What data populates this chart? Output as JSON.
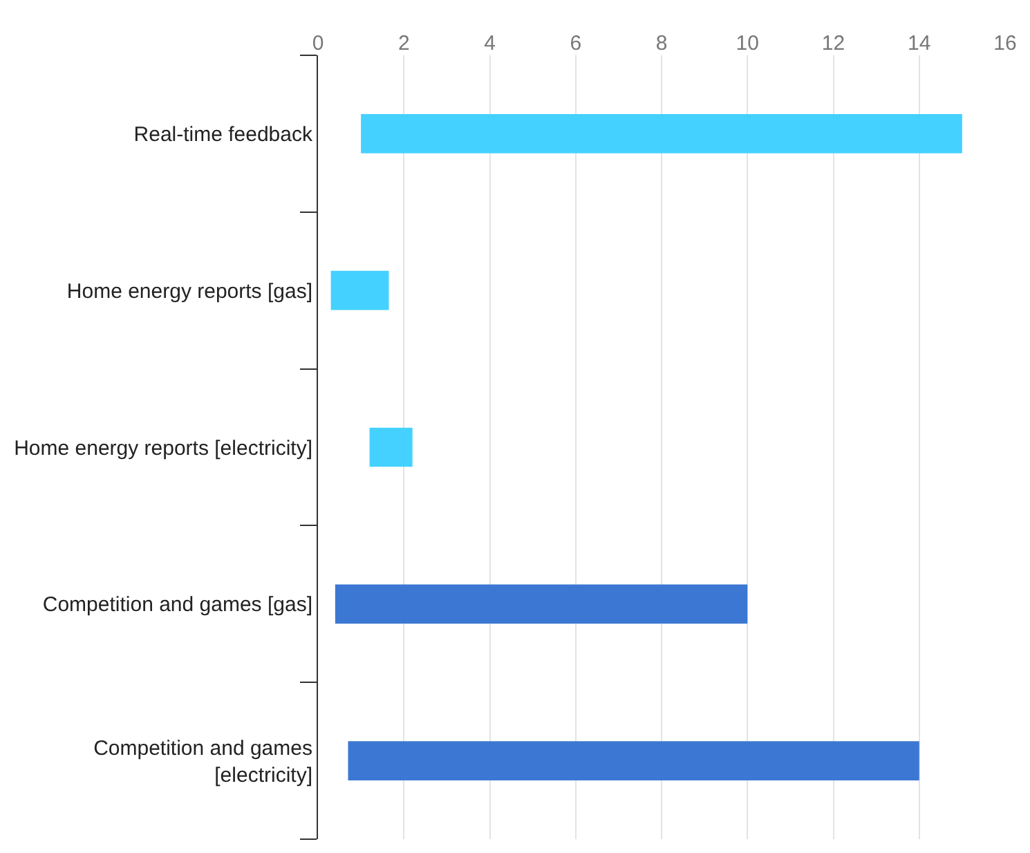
{
  "chart_data": {
    "type": "bar",
    "orientation": "horizontal",
    "categories": [
      "Real-time feedback",
      "Home energy reports [gas]",
      "Home energy reports [electricity]",
      "Competition and games [gas]",
      "Competition and games [electricity]"
    ],
    "base": [
      1,
      0.3,
      1.2,
      0.4,
      0.7
    ],
    "values": [
      14,
      1.35,
      1.0,
      9.6,
      13.3
    ],
    "colors": [
      "#45d1ff",
      "#45d1ff",
      "#45d1ff",
      "#3c78d3",
      "#3c78d3"
    ],
    "xlim": [
      0,
      16
    ],
    "xticks": [
      0,
      2,
      4,
      6,
      8,
      10,
      12,
      14,
      16
    ],
    "grid": "x"
  }
}
